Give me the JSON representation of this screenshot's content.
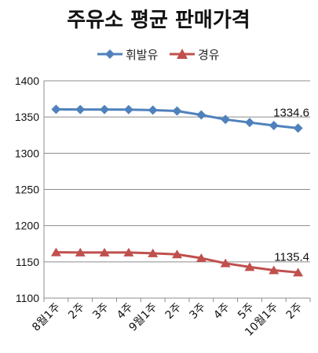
{
  "chart_data": {
    "type": "line",
    "title": "주유소 평균 판매가격",
    "categories": [
      "8월1주",
      "2주",
      "3주",
      "4주",
      "9월1주",
      "2주",
      "3주",
      "4주",
      "5주",
      "10월1주",
      "2주"
    ],
    "series": [
      {
        "name": "휘발유",
        "color": "#4f81bd",
        "marker": "diamond",
        "values": [
          1360.6,
          1360.4,
          1360.3,
          1360.2,
          1359.5,
          1358.3,
          1352.9,
          1346.6,
          1342.4,
          1338.3,
          1334.6
        ],
        "end_label": "1334.6"
      },
      {
        "name": "경유",
        "color": "#c0504d",
        "marker": "triangle",
        "values": [
          1163.2,
          1163.0,
          1162.9,
          1163.0,
          1161.9,
          1160.4,
          1155.2,
          1148.0,
          1142.9,
          1138.4,
          1135.4
        ],
        "end_label": "1135.4"
      }
    ],
    "ylim": [
      1100,
      1400
    ],
    "yticks": [
      1100,
      1150,
      1200,
      1250,
      1300,
      1350,
      1400
    ],
    "grid": true,
    "legend_position": "top-center"
  }
}
